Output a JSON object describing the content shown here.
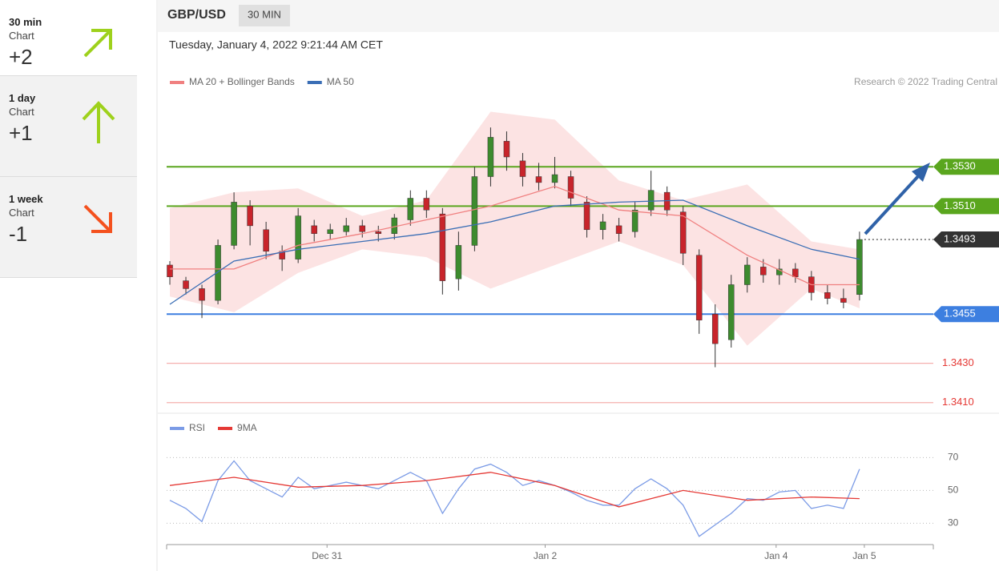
{
  "header": {
    "symbol": "GBP/USD",
    "interval": "30 MIN"
  },
  "sidebar": [
    {
      "title": "30 min",
      "subtitle": "Chart",
      "score": "+2"
    },
    {
      "title": "1 day",
      "subtitle": "Chart",
      "score": "+1"
    },
    {
      "title": "1 week",
      "subtitle": "Chart",
      "score": "-1"
    }
  ],
  "chart_data": [
    {
      "type": "candlestick",
      "subtitle": "Tuesday, January 4, 2022 9:21:44 AM CET",
      "source": "Research © 2022 Trading Central",
      "up_color": "#3d8b2e",
      "down_color": "#c8242b",
      "xlim": [
        -0.2,
        47.6
      ],
      "ylim": [
        1.3405,
        1.3568
      ],
      "open": [
        1.348,
        1.3472,
        1.3468,
        1.3462,
        1.349,
        1.351,
        1.3498,
        1.3487,
        1.3483,
        1.35,
        1.3496,
        1.3497,
        1.35,
        1.3497,
        1.3496,
        1.3503,
        1.3514,
        1.3506,
        1.3473,
        1.349,
        1.3525,
        1.3543,
        1.3533,
        1.3525,
        1.3522,
        1.3525,
        1.3512,
        1.3498,
        1.35,
        1.3497,
        1.3508,
        1.3517,
        1.3507,
        1.3485,
        1.3455,
        1.3442,
        1.347,
        1.3479,
        1.3475,
        1.3478,
        1.3474,
        1.3466,
        1.3463,
        1.3465
      ],
      "high": [
        1.3482,
        1.3474,
        1.347,
        1.3493,
        1.3517,
        1.3513,
        1.3502,
        1.349,
        1.3509,
        1.3503,
        1.3501,
        1.3504,
        1.3503,
        1.35,
        1.3506,
        1.3518,
        1.3518,
        1.3509,
        1.3497,
        1.353,
        1.355,
        1.3548,
        1.3537,
        1.3532,
        1.3535,
        1.3528,
        1.3515,
        1.3506,
        1.3504,
        1.3512,
        1.3528,
        1.352,
        1.351,
        1.3488,
        1.346,
        1.3475,
        1.3484,
        1.3483,
        1.3483,
        1.3481,
        1.3477,
        1.347,
        1.3468,
        1.3497
      ],
      "low": [
        1.347,
        1.3465,
        1.3453,
        1.346,
        1.3488,
        1.349,
        1.3483,
        1.3477,
        1.3481,
        1.3492,
        1.3493,
        1.3495,
        1.3494,
        1.3492,
        1.3493,
        1.35,
        1.3504,
        1.3465,
        1.3467,
        1.3487,
        1.352,
        1.3528,
        1.352,
        1.3518,
        1.3519,
        1.351,
        1.3494,
        1.3493,
        1.3492,
        1.3494,
        1.3505,
        1.3505,
        1.348,
        1.3445,
        1.3428,
        1.3438,
        1.3466,
        1.3471,
        1.347,
        1.3471,
        1.3462,
        1.346,
        1.3458,
        1.3462
      ],
      "close": [
        1.3474,
        1.3468,
        1.3462,
        1.349,
        1.3512,
        1.35,
        1.3487,
        1.3483,
        1.3505,
        1.3496,
        1.3498,
        1.35,
        1.3497,
        1.3496,
        1.3504,
        1.3514,
        1.3508,
        1.3472,
        1.349,
        1.3525,
        1.3545,
        1.3535,
        1.3525,
        1.3522,
        1.3526,
        1.3514,
        1.3498,
        1.3502,
        1.3496,
        1.3508,
        1.3518,
        1.3508,
        1.3486,
        1.3452,
        1.344,
        1.347,
        1.348,
        1.3475,
        1.3478,
        1.3474,
        1.3466,
        1.3463,
        1.3461,
        1.3493
      ],
      "series": [
        {
          "name": "MA 20 + Bollinger Bands",
          "color": "#f08080",
          "x": [
            0,
            4,
            8,
            12,
            16,
            20,
            24,
            28,
            32,
            36,
            40,
            43
          ],
          "values": [
            1.3478,
            1.3478,
            1.349,
            1.3496,
            1.3503,
            1.351,
            1.352,
            1.3508,
            1.3505,
            1.3485,
            1.347,
            1.347
          ],
          "band": {
            "upper": [
              1.3509,
              1.3517,
              1.3519,
              1.3505,
              1.3513,
              1.3558,
              1.3554,
              1.3523,
              1.3513,
              1.3521,
              1.3492,
              1.3488
            ],
            "lower": [
              1.3464,
              1.3456,
              1.3476,
              1.3488,
              1.3484,
              1.3468,
              1.348,
              1.3492,
              1.348,
              1.3439,
              1.3468,
              1.3458
            ]
          }
        },
        {
          "name": "MA 50",
          "color": "#3a6eb5",
          "x": [
            0,
            4,
            8,
            12,
            16,
            20,
            24,
            28,
            32,
            36,
            40,
            43
          ],
          "values": [
            1.346,
            1.3482,
            1.3488,
            1.3492,
            1.3496,
            1.3502,
            1.351,
            1.3512,
            1.3513,
            1.35,
            1.3488,
            1.3483
          ]
        }
      ],
      "levels": [
        {
          "value": 1.353,
          "label": "1.3530",
          "color": "#5aa61e",
          "style": "tag",
          "line": "solid"
        },
        {
          "value": 1.351,
          "label": "1.3510",
          "color": "#5aa61e",
          "style": "tag",
          "line": "solid"
        },
        {
          "value": 1.3493,
          "label": "1.3493",
          "color": "#333333",
          "style": "tag",
          "line": "dotted"
        },
        {
          "value": 1.3455,
          "label": "1.3455",
          "color": "#3d7fe0",
          "style": "tag",
          "line": "solid"
        },
        {
          "value": 1.343,
          "label": "1.3430",
          "color": "#e53935",
          "style": "text",
          "line": "solid"
        },
        {
          "value": 1.341,
          "label": "1.3410",
          "color": "#e53935",
          "style": "text",
          "line": "solid"
        }
      ]
    },
    {
      "type": "line",
      "xlim": [
        -0.2,
        47.6
      ],
      "ylim": [
        17,
        78
      ],
      "yticks": [
        30,
        50,
        70
      ],
      "xticks": [
        {
          "value": 9.8,
          "label": "Dec 31"
        },
        {
          "value": 23.4,
          "label": "Jan 2"
        },
        {
          "value": 37.8,
          "label": "Jan 4"
        },
        {
          "value": 43.3,
          "label": "Jan 5"
        }
      ],
      "series": [
        {
          "name": "RSI",
          "color": "#7b9be6",
          "values": [
            44,
            39,
            31,
            56,
            68,
            56,
            51,
            46,
            58,
            51,
            53,
            55,
            53,
            51,
            56,
            61,
            56,
            36,
            51,
            63,
            66,
            61,
            53,
            56,
            53,
            49,
            44,
            41,
            41,
            51,
            57,
            51,
            41,
            22,
            29,
            36,
            45,
            44,
            49,
            50,
            39,
            41,
            39,
            63
          ]
        },
        {
          "name": "9MA",
          "color": "#e53935",
          "x": [
            0,
            4,
            8,
            12,
            16,
            20,
            24,
            28,
            32,
            36,
            40,
            43
          ],
          "values": [
            53,
            58,
            52,
            53,
            56,
            61,
            53,
            40,
            50,
            44,
            46,
            45
          ]
        }
      ]
    }
  ]
}
